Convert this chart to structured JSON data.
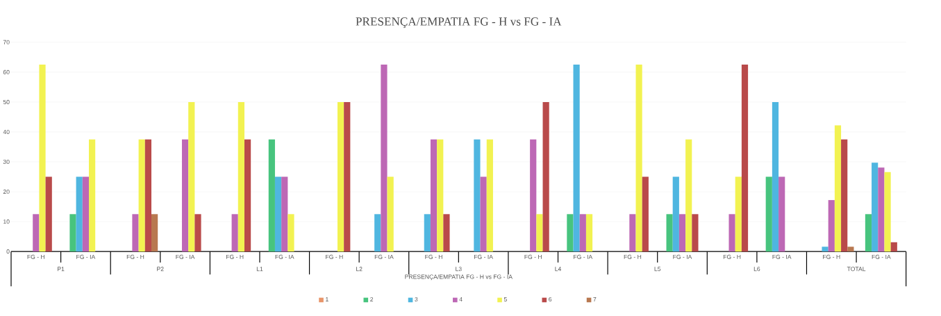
{
  "chart_data": {
    "type": "bar",
    "title": "PRESENÇA/EMPATIA FG - H vs FG - IA",
    "xlabel": "PRESENÇA/EMPATIA FG - H vs FG - IA",
    "categories": [
      "FG - H",
      "FG - IA",
      "FG - H",
      "FG - IA",
      "FG - H",
      "FG - IA",
      "FG - H",
      "FG - IA",
      "FG - H",
      "FG - IA",
      "FG - H",
      "FG - IA",
      "FG - H",
      "FG - IA",
      "FG - H",
      "FG - IA",
      "FG - H",
      "FG - IA"
    ],
    "annotations": [
      "P1",
      "P2",
      "L1",
      "L2",
      "L3",
      "L4",
      "L5",
      "L6",
      "TOTAL"
    ],
    "series": [
      {
        "name": "1",
        "color": "#e8956a",
        "values": [
          null,
          null,
          null,
          null,
          null,
          null,
          null,
          null,
          null,
          null,
          null,
          null,
          null,
          null,
          null,
          null,
          null,
          null
        ]
      },
      {
        "name": "2",
        "color": "#47c47e",
        "values": [
          null,
          12.5,
          null,
          null,
          null,
          37.5,
          null,
          null,
          null,
          null,
          null,
          12.5,
          null,
          12.5,
          null,
          25,
          null,
          12.5
        ]
      },
      {
        "name": "3",
        "color": "#4fb6e0",
        "values": [
          null,
          25,
          null,
          null,
          null,
          25,
          null,
          12.5,
          12.5,
          37.5,
          null,
          62.5,
          null,
          25,
          null,
          50,
          1.6,
          29.7
        ]
      },
      {
        "name": "4",
        "color": "#bd68b5",
        "values": [
          12.5,
          25,
          12.5,
          37.5,
          12.5,
          25,
          null,
          62.5,
          37.5,
          25,
          37.5,
          12.5,
          12.5,
          12.5,
          12.5,
          25,
          17.2,
          28.1
        ]
      },
      {
        "name": "5",
        "color": "#f2f251",
        "values": [
          62.5,
          37.5,
          37.5,
          50,
          50,
          12.5,
          50,
          25,
          37.5,
          37.5,
          12.5,
          12.5,
          62.5,
          37.5,
          25,
          null,
          42.2,
          26.6
        ]
      },
      {
        "name": "6",
        "color": "#b94a4a",
        "values": [
          25,
          null,
          37.5,
          12.5,
          37.5,
          null,
          50,
          null,
          12.5,
          null,
          50,
          null,
          25,
          12.5,
          62.5,
          null,
          37.5,
          3.1
        ]
      },
      {
        "name": "7",
        "color": "#b87850",
        "values": [
          null,
          null,
          12.5,
          null,
          null,
          null,
          null,
          null,
          null,
          null,
          null,
          null,
          null,
          null,
          null,
          null,
          1.6,
          null
        ]
      }
    ],
    "ylim": [
      0,
      70
    ],
    "yticks": [
      0,
      10,
      20,
      30,
      40,
      50,
      60,
      70
    ],
    "grid": "y",
    "legend": "bottom"
  }
}
